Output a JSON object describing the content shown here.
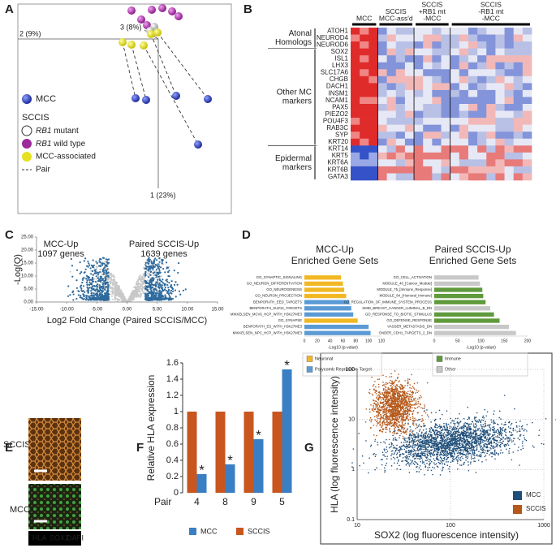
{
  "panel_a": {
    "label": "A",
    "axes": [
      "2 (9%)",
      "3 (8%)",
      "1 (23%)"
    ],
    "legend": {
      "mcc": "MCC",
      "sccis": "SCCIS",
      "mutant": {
        "gene": "RB1",
        "text": " mutant"
      },
      "wild": {
        "gene": "RB1",
        "text": " wild type"
      },
      "assoc": "MCC-associated",
      "pair": "Pair"
    }
  },
  "panel_b": {
    "label": "B",
    "columns": [
      [
        "MCC"
      ],
      [
        "SCCIS",
        "MCC-ass'd"
      ],
      [
        "SCCIS",
        "+RB1 mt",
        "-MCC"
      ],
      [
        "SCCIS",
        "-RB1 mt",
        "-MCC"
      ]
    ],
    "groups": [
      [
        "Atonal",
        "Homologs"
      ],
      [
        "Other MC",
        "markers"
      ],
      [
        "Epidermal",
        "markers"
      ]
    ],
    "genes": [
      "ATOH1",
      "NEUROD4",
      "NEUROD6",
      "SOX2",
      "ISL1",
      "LHX3",
      "SLC17A6",
      "CHGB",
      "DACH1",
      "INSM1",
      "NCAM1",
      "PAX5",
      "PIEZO2",
      "POU4F3",
      "RAB3C",
      "SYP",
      "KRT20",
      "KRT14",
      "KRT5",
      "KRT6A",
      "KRT6B",
      "GATA3"
    ]
  },
  "panel_e": {
    "label": "E",
    "rows": [
      "SCCIS",
      "MCC"
    ],
    "stains": [
      {
        "name": "HLA",
        "color": "#e07b2a"
      },
      {
        "name": "SOX2",
        "color": "#4cc34c"
      },
      {
        "name": "DAPI",
        "color": "#4a6cf0"
      }
    ]
  },
  "chart_data": [
    {
      "label": "C",
      "type": "volcano",
      "ylabel": "-Log(Q)",
      "xlabel": "Log2 Fold Change (Paired SCCIS/MCC)",
      "annotations": [
        [
          "MCC-Up",
          "1097 genes"
        ],
        [
          "Paired SCCIS-Up",
          "1639 genes"
        ]
      ],
      "xlim": [
        -15,
        15
      ],
      "ylim": [
        0,
        25
      ],
      "xticks": [
        {
          "value": -15,
          "label": "-15.00"
        },
        {
          "value": -10,
          "label": "-10.00"
        },
        {
          "value": -5,
          "label": "-5.00"
        },
        {
          "value": 0,
          "label": "0.00"
        },
        {
          "value": 5,
          "label": "5.00"
        },
        {
          "value": 10,
          "label": "10.00"
        },
        {
          "value": 15,
          "label": "15.00"
        }
      ],
      "yticks": [
        {
          "value": 0,
          "label": "0.00"
        },
        {
          "value": 5,
          "label": "5.00"
        },
        {
          "value": 10,
          "label": "10.00"
        },
        {
          "value": 15,
          "label": "15.00"
        },
        {
          "value": 20,
          "label": "20.00"
        },
        {
          "value": 25,
          "label": "25.00"
        }
      ]
    },
    {
      "label": "D",
      "type": "hbar",
      "title": [
        "MCC-Up",
        "Enriched Gene Sets"
      ],
      "xlabel": "-Log10 (p-value)",
      "categories": [
        "GO_SYNAPTIC_SIGNALING",
        "GO_NEURON_DIFFERENTIATION",
        "GO_NEUROGENESIS",
        "GO_NEURON_PROJECTION",
        "BENPORATH_EED_TARGETS",
        "BENPORATH_SUZ12_TARGETS",
        "MIKKELSEN_MCV6_HCP_WITH_H3K27ME3",
        "GO_SYNAPSE",
        "BENPORATH_ES_WITH_H3K27ME3",
        "MIKKELSEN_NPC_HCP_WITH_H3K27ME3"
      ],
      "values": [
        57,
        60,
        62,
        65,
        70,
        73,
        76,
        83,
        100,
        103
      ],
      "colors": [
        "#f2b824",
        "#f2b824",
        "#f2b824",
        "#f2b824",
        "#5b9bd5",
        "#5b9bd5",
        "#5b9bd5",
        "#f2b824",
        "#5b9bd5",
        "#5b9bd5"
      ],
      "legend": [
        {
          "name": "Neuronal",
          "color": "#f2b824"
        },
        {
          "name": "Polycomb Repressive Target",
          "color": "#5b9bd5"
        }
      ],
      "xlim": [
        0,
        120
      ],
      "xticks": [
        0,
        20,
        40,
        60,
        80,
        100,
        120
      ]
    },
    {
      "type": "hbar",
      "title": [
        "Paired SCCIS-Up",
        "Enriched Gene Sets"
      ],
      "xlabel": "-Log10 (p-value)",
      "categories": [
        "GO_CELL_ACTIVATION",
        "MODULE_46_[Cancer_Module]",
        "MODULE_75_[Immune_Response]",
        "MODULE_84_[Humoral_Immune]",
        "GO_REGULATION_OF_IMMUNE_SYSTEM_PROCESS",
        "SMID_BREAST_CANCER_LUMINAL_B_DN",
        "GO_RESPONSE_TO_BIOTIC_STIMULUS",
        "GO_DEFENSE_RESPONSE",
        "VASSER_METASTASIS_DN",
        "ONDER_CDH1_TARGETS_2_DN"
      ],
      "values": [
        95,
        98,
        103,
        105,
        110,
        120,
        128,
        140,
        160,
        175
      ],
      "colors": [
        "#c8c8c8",
        "#c8c8c8",
        "#5f9a3c",
        "#5f9a3c",
        "#5f9a3c",
        "#c8c8c8",
        "#5f9a3c",
        "#5f9a3c",
        "#c8c8c8",
        "#c8c8c8"
      ],
      "legend": [
        {
          "name": "Immune",
          "color": "#5f9a3c"
        },
        {
          "name": "Other",
          "color": "#c8c8c8"
        }
      ],
      "xlim": [
        0,
        200
      ],
      "xticks": [
        0,
        50,
        100,
        150,
        200
      ]
    },
    {
      "label": "F",
      "type": "bar",
      "ylabel": "Relative HLA expression",
      "category_title": "Pair",
      "categories": [
        "4",
        "8",
        "9",
        "5"
      ],
      "series": [
        {
          "name": "MCC",
          "color": "#3a7fc4",
          "values": [
            0.23,
            0.35,
            0.66,
            1.52
          ],
          "markers": [
            "*",
            "*",
            "*",
            "*"
          ]
        },
        {
          "name": "SCCIS",
          "color": "#c8561e",
          "values": [
            1,
            1,
            1,
            1
          ]
        }
      ],
      "ylim": [
        0,
        1.6
      ],
      "yticks": [
        0,
        0.2,
        0.4,
        0.6,
        0.8,
        1,
        1.2,
        1.4,
        1.6
      ]
    },
    {
      "label": "G",
      "type": "scatter",
      "xlabel": "SOX2 (log fluorescence intensity)",
      "ylabel": "HLA (log fluorescence intensity)",
      "log_scale": true,
      "grid": true,
      "series": [
        {
          "name": "MCC",
          "color": "#1f4e79"
        },
        {
          "name": "SCCIS",
          "color": "#b5581a"
        }
      ],
      "xlim": [
        10,
        1000
      ],
      "ylim": [
        0.1,
        100
      ],
      "xticks": [
        10,
        100,
        1000
      ],
      "yticks": [
        0.1,
        1,
        10,
        100
      ]
    }
  ]
}
